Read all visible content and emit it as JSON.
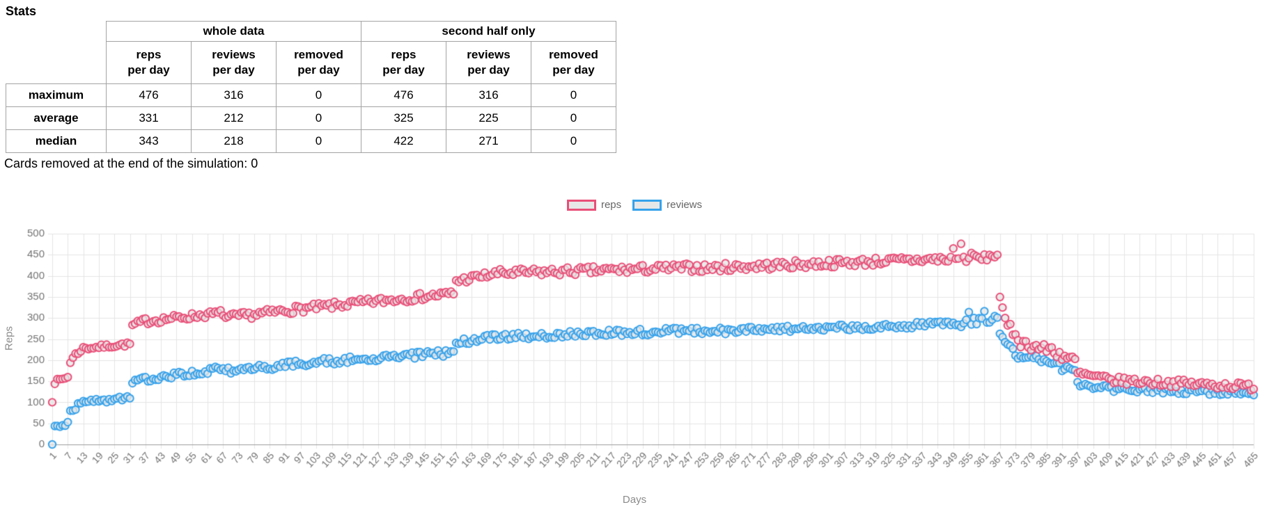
{
  "page_title": "Stats",
  "stats_table": {
    "groups": [
      {
        "label": "whole data"
      },
      {
        "label": "second half only"
      }
    ],
    "col_headers": [
      "reps\nper day",
      "reviews\nper day",
      "removed\nper day",
      "reps\nper day",
      "reviews\nper day",
      "removed\nper day"
    ],
    "rows": [
      {
        "label": "maximum",
        "values": [
          "476",
          "316",
          "0",
          "476",
          "316",
          "0"
        ]
      },
      {
        "label": "average",
        "values": [
          "331",
          "212",
          "0",
          "325",
          "225",
          "0"
        ]
      },
      {
        "label": "median",
        "values": [
          "343",
          "218",
          "0",
          "422",
          "271",
          "0"
        ]
      }
    ]
  },
  "cards_removed_note": "Cards removed at the end of the simulation: 0",
  "chart_data": {
    "type": "scatter",
    "title": "",
    "xlabel": "Days",
    "ylabel": "Reps",
    "xlim": [
      1,
      465
    ],
    "ylim": [
      0,
      500
    ],
    "y_tick_step": 50,
    "x_ticks": {
      "first": 1,
      "step": 6,
      "until": 457,
      "last": 465
    },
    "grid": true,
    "legend": {
      "position": "top",
      "items": [
        {
          "label": "reps",
          "color": "#e94f78"
        },
        {
          "label": "reviews",
          "color": "#36a2eb"
        }
      ]
    },
    "style": {
      "point_fill": "rgba(230,230,230,0.75)",
      "point_radius": 5.2,
      "grid_color": "#e4e4e4",
      "axis_line_color": "#9b9b9b",
      "tick_label_color": "#737373",
      "axis_title_color": "#8b8b8b",
      "seed": 7
    },
    "series_note": "segments are [startDay, endDay, startValue, endValue, noiseAmplitude]; per-day points follow the linear trend +/- uniform noise; outliers are explicit [day, value] points",
    "series": [
      {
        "name": "reps",
        "color": "#e94f78",
        "segments": [
          [
            1,
            1,
            100,
            100,
            0
          ],
          [
            2,
            7,
            148,
            160,
            5
          ],
          [
            8,
            12,
            198,
            226,
            8
          ],
          [
            13,
            31,
            228,
            238,
            5
          ],
          [
            32,
            37,
            282,
            295,
            6
          ],
          [
            38,
            67,
            293,
            312,
            8
          ],
          [
            68,
            97,
            300,
            322,
            9
          ],
          [
            98,
            156,
            322,
            358,
            9
          ],
          [
            157,
            175,
            388,
            408,
            9
          ],
          [
            176,
            250,
            406,
            420,
            10
          ],
          [
            251,
            345,
            418,
            440,
            10
          ],
          [
            346,
            358,
            436,
            446,
            11
          ],
          [
            359,
            366,
            440,
            450,
            8
          ],
          [
            367,
            368,
            352,
            322,
            4
          ],
          [
            369,
            374,
            288,
            255,
            12
          ],
          [
            375,
            385,
            242,
            225,
            12
          ],
          [
            386,
            396,
            228,
            196,
            14
          ],
          [
            397,
            410,
            168,
            152,
            10
          ],
          [
            411,
            465,
            152,
            137,
            9
          ]
        ],
        "outliers": [
          [
            349,
            465
          ],
          [
            352,
            476
          ]
        ]
      },
      {
        "name": "reviews",
        "color": "#36a2eb",
        "segments": [
          [
            1,
            1,
            0,
            0,
            0
          ],
          [
            2,
            7,
            40,
            50,
            4
          ],
          [
            8,
            12,
            80,
            96,
            6
          ],
          [
            13,
            31,
            100,
            110,
            5
          ],
          [
            32,
            37,
            148,
            157,
            5
          ],
          [
            38,
            67,
            155,
            180,
            7
          ],
          [
            68,
            97,
            174,
            192,
            8
          ],
          [
            98,
            156,
            193,
            218,
            8
          ],
          [
            157,
            175,
            242,
            258,
            8
          ],
          [
            176,
            250,
            256,
            270,
            8
          ],
          [
            251,
            345,
            268,
            285,
            8
          ],
          [
            346,
            366,
            282,
            298,
            10
          ],
          [
            367,
            372,
            262,
            235,
            10
          ],
          [
            373,
            385,
            215,
            196,
            10
          ],
          [
            386,
            396,
            196,
            166,
            10
          ],
          [
            397,
            410,
            146,
            132,
            8
          ],
          [
            411,
            465,
            132,
            121,
            7
          ]
        ],
        "outliers": [
          [
            355,
            314
          ],
          [
            361,
            316
          ]
        ]
      }
    ]
  }
}
